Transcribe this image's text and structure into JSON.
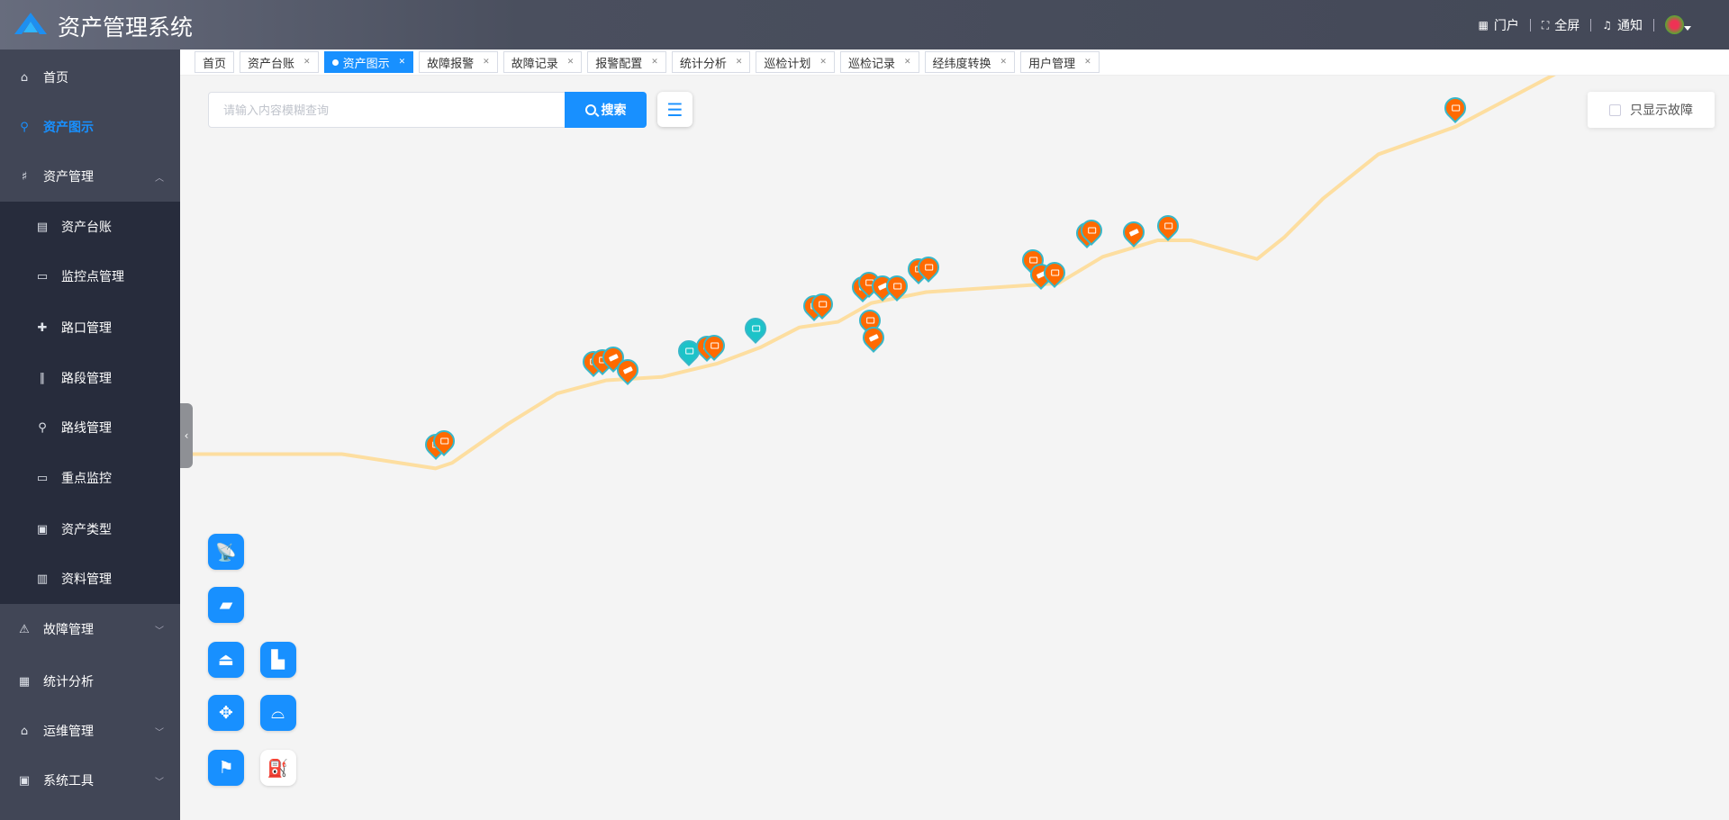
{
  "header": {
    "title": "资产管理系统",
    "portal": "门户",
    "fullscreen": "全屏",
    "notify": "通知"
  },
  "sidebar": {
    "items": [
      {
        "label": "首页",
        "icon": "home-icon",
        "glyph": "⌂"
      },
      {
        "label": "资产图示",
        "icon": "map-pin-icon",
        "glyph": "⚲",
        "active": true
      },
      {
        "label": "资产管理",
        "icon": "asset-icon",
        "glyph": "♯",
        "expanded": true
      },
      {
        "label": "资产台账",
        "icon": "ledger-icon",
        "glyph": "▤"
      },
      {
        "label": "监控点管理",
        "icon": "monitor-point-icon",
        "glyph": "▭"
      },
      {
        "label": "路口管理",
        "icon": "crossroad-icon",
        "glyph": "✚"
      },
      {
        "label": "路段管理",
        "icon": "road-icon",
        "glyph": "∥"
      },
      {
        "label": "路线管理",
        "icon": "route-icon",
        "glyph": "⚲"
      },
      {
        "label": "重点监控",
        "icon": "screen-icon",
        "glyph": "▭"
      },
      {
        "label": "资产类型",
        "icon": "box-icon",
        "glyph": "▣"
      },
      {
        "label": "资料管理",
        "icon": "book-icon",
        "glyph": "▥"
      },
      {
        "label": "故障管理",
        "icon": "fault-icon",
        "glyph": "⚠"
      },
      {
        "label": "统计分析",
        "icon": "chart-icon",
        "glyph": "▦"
      },
      {
        "label": "运维管理",
        "icon": "maintenance-icon",
        "glyph": "⌂"
      },
      {
        "label": "系统工具",
        "icon": "tools-icon",
        "glyph": "▣"
      }
    ]
  },
  "tabs": [
    {
      "label": "首页",
      "closable": false
    },
    {
      "label": "资产台账",
      "closable": true
    },
    {
      "label": "资产图示",
      "closable": true,
      "active": true
    },
    {
      "label": "故障报警",
      "closable": true
    },
    {
      "label": "故障记录",
      "closable": true
    },
    {
      "label": "报警配置",
      "closable": true
    },
    {
      "label": "统计分析",
      "closable": true
    },
    {
      "label": "巡检计划",
      "closable": true
    },
    {
      "label": "巡检记录",
      "closable": true
    },
    {
      "label": "经纬度转换",
      "closable": true
    },
    {
      "label": "用户管理",
      "closable": true
    }
  ],
  "search": {
    "placeholder": "请输入内容模糊查询",
    "value": "",
    "button": "搜索"
  },
  "filter": {
    "label": "只显示故障",
    "checked": false
  },
  "colors": {
    "accent": "#1890ff",
    "road": "#fddea0",
    "marker_normal": "#ff6a00",
    "marker_teal": "#1cc3c8",
    "marker_border": "#37b7c9"
  },
  "tools": [
    {
      "icon": "satellite-dish-icon",
      "glyph": "📡"
    },
    {
      "icon": "camera-icon",
      "glyph": "▰"
    },
    {
      "icon": "controller-icon",
      "glyph": "⏏"
    },
    {
      "icon": "toll-gate-icon",
      "glyph": "▙"
    },
    {
      "icon": "weather-station-icon",
      "glyph": "✥"
    },
    {
      "icon": "bridge-icon",
      "glyph": "⌓"
    },
    {
      "icon": "sign-icon",
      "glyph": "⚑"
    },
    {
      "icon": "fuel-station-icon",
      "glyph": "⛽",
      "selected": true
    }
  ],
  "markers": [
    {
      "type": "controller",
      "color": "orange"
    },
    {
      "type": "controller",
      "color": "orange"
    },
    {
      "type": "controller",
      "color": "orange"
    },
    {
      "type": "controller",
      "color": "orange"
    },
    {
      "type": "camera",
      "color": "orange"
    },
    {
      "type": "camera",
      "color": "orange"
    },
    {
      "type": "weather",
      "color": "teal"
    },
    {
      "type": "controller",
      "color": "orange"
    },
    {
      "type": "controller",
      "color": "orange"
    },
    {
      "type": "toll",
      "color": "teal"
    },
    {
      "type": "controller",
      "color": "orange"
    },
    {
      "type": "controller",
      "color": "orange"
    },
    {
      "type": "controller",
      "color": "orange"
    },
    {
      "type": "controller",
      "color": "orange"
    },
    {
      "type": "camera",
      "color": "orange"
    },
    {
      "type": "controller",
      "color": "orange"
    },
    {
      "type": "controller",
      "color": "orange"
    },
    {
      "type": "camera",
      "color": "orange"
    },
    {
      "type": "controller",
      "color": "orange"
    },
    {
      "type": "controller",
      "color": "orange"
    },
    {
      "type": "controller",
      "color": "orange"
    },
    {
      "type": "camera",
      "color": "orange"
    },
    {
      "type": "controller",
      "color": "orange"
    },
    {
      "type": "controller",
      "color": "orange"
    },
    {
      "type": "controller",
      "color": "orange"
    },
    {
      "type": "camera",
      "color": "orange"
    },
    {
      "type": "controller",
      "color": "orange"
    },
    {
      "type": "controller",
      "color": "orange"
    }
  ]
}
